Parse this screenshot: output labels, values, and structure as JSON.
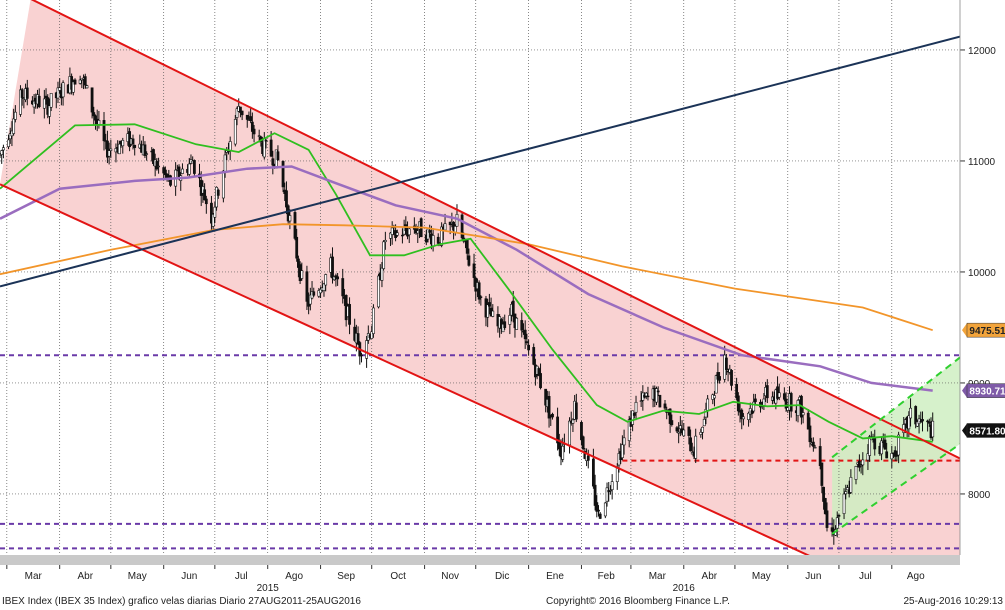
{
  "chart_data": {
    "type": "candlestick",
    "instrument": "IBEX Index (IBEX 35 Index)",
    "x_tick_labels": [
      "Mar",
      "Abr",
      "May",
      "Jun",
      "Jul",
      "Ago",
      "Sep",
      "Oct",
      "Nov",
      "Dic",
      "Ene",
      "Feb",
      "Mar",
      "Abr",
      "May",
      "Jun",
      "Jul",
      "Ago"
    ],
    "x_tick_dates": [
      "2015-03-01",
      "2015-04-01",
      "2015-05-01",
      "2015-06-01",
      "2015-07-01",
      "2015-08-01",
      "2015-09-01",
      "2015-10-01",
      "2015-11-01",
      "2015-12-01",
      "2016-01-01",
      "2016-02-01",
      "2016-03-01",
      "2016-04-01",
      "2016-05-01",
      "2016-06-01",
      "2016-07-01",
      "2016-08-01"
    ],
    "year_labels": [
      {
        "label": "2015",
        "date": "2015-08-01"
      },
      {
        "label": "2016",
        "date": "2016-04-01"
      }
    ],
    "y_ticks": [
      8000,
      9000,
      10000,
      11000,
      12000
    ],
    "y_tick_labels": [
      "8000",
      "9000",
      "10000",
      "11000",
      "12000"
    ],
    "ylim": [
      7450,
      12450
    ],
    "xlim": [
      "2015-02-25",
      "2016-09-10"
    ],
    "price_anchors": [
      [
        "2015-02-25",
        11050
      ],
      [
        "2015-03-10",
        11600
      ],
      [
        "2015-03-25",
        11500
      ],
      [
        "2015-04-13",
        11800
      ],
      [
        "2015-04-28",
        11100
      ],
      [
        "2015-05-15",
        11200
      ],
      [
        "2015-06-05",
        10800
      ],
      [
        "2015-06-18",
        11000
      ],
      [
        "2015-06-29",
        10500
      ],
      [
        "2015-07-15",
        11500
      ],
      [
        "2015-07-28",
        11150
      ],
      [
        "2015-08-07",
        11000
      ],
      [
        "2015-08-24",
        9700
      ],
      [
        "2015-09-07",
        10050
      ],
      [
        "2015-09-24",
        9300
      ],
      [
        "2015-10-01",
        9500
      ],
      [
        "2015-10-09",
        10300
      ],
      [
        "2015-10-26",
        10400
      ],
      [
        "2015-11-09",
        10300
      ],
      [
        "2015-11-20",
        10450
      ],
      [
        "2015-12-04",
        9750
      ],
      [
        "2015-12-14",
        9500
      ],
      [
        "2015-12-22",
        9650
      ],
      [
        "2016-01-06",
        9100
      ],
      [
        "2016-01-20",
        8400
      ],
      [
        "2016-01-28",
        8800
      ],
      [
        "2016-02-11",
        7800
      ],
      [
        "2016-02-22",
        8300
      ],
      [
        "2016-03-04",
        8800
      ],
      [
        "2016-03-15",
        8900
      ],
      [
        "2016-04-07",
        8400
      ],
      [
        "2016-04-25",
        9250
      ],
      [
        "2016-05-05",
        8700
      ],
      [
        "2016-05-20",
        8900
      ],
      [
        "2016-06-08",
        8800
      ],
      [
        "2016-06-20",
        8300
      ],
      [
        "2016-06-24",
        7700
      ],
      [
        "2016-06-27",
        7650
      ],
      [
        "2016-07-08",
        8100
      ],
      [
        "2016-07-20",
        8500
      ],
      [
        "2016-08-02",
        8350
      ],
      [
        "2016-08-12",
        8700
      ],
      [
        "2016-08-25",
        8571.8
      ]
    ],
    "moving_averages": [
      {
        "name": "green",
        "color": "#2fbf1f",
        "points": [
          [
            "2015-02-25",
            10750
          ],
          [
            "2015-04-10",
            11320
          ],
          [
            "2015-05-15",
            11330
          ],
          [
            "2015-06-20",
            11150
          ],
          [
            "2015-07-15",
            11080
          ],
          [
            "2015-08-05",
            11250
          ],
          [
            "2015-08-25",
            11100
          ],
          [
            "2015-09-10",
            10700
          ],
          [
            "2015-09-30",
            10150
          ],
          [
            "2015-10-20",
            10150
          ],
          [
            "2015-11-10",
            10250
          ],
          [
            "2015-11-28",
            10300
          ],
          [
            "2015-12-20",
            9850
          ],
          [
            "2016-01-15",
            9300
          ],
          [
            "2016-02-10",
            8800
          ],
          [
            "2016-02-28",
            8650
          ],
          [
            "2016-03-20",
            8750
          ],
          [
            "2016-04-10",
            8720
          ],
          [
            "2016-04-30",
            8830
          ],
          [
            "2016-05-20",
            8790
          ],
          [
            "2016-06-08",
            8800
          ],
          [
            "2016-06-25",
            8650
          ],
          [
            "2016-07-15",
            8500
          ],
          [
            "2016-08-01",
            8520
          ],
          [
            "2016-08-25",
            8470
          ]
        ]
      },
      {
        "name": "purple",
        "color": "#9a6dbf",
        "points": [
          [
            "2015-02-25",
            10480
          ],
          [
            "2015-04-01",
            10750
          ],
          [
            "2015-05-15",
            10820
          ],
          [
            "2015-06-15",
            10850
          ],
          [
            "2015-07-20",
            10930
          ],
          [
            "2015-08-15",
            10950
          ],
          [
            "2015-09-10",
            10800
          ],
          [
            "2015-10-15",
            10600
          ],
          [
            "2015-11-20",
            10480
          ],
          [
            "2015-12-25",
            10200
          ],
          [
            "2016-02-05",
            9800
          ],
          [
            "2016-03-20",
            9500
          ],
          [
            "2016-05-05",
            9250
          ],
          [
            "2016-06-20",
            9150
          ],
          [
            "2016-07-20",
            9000
          ],
          [
            "2016-08-25",
            8930.71
          ]
        ]
      },
      {
        "name": "orange",
        "color": "#f2952a",
        "points": [
          [
            "2015-02-25",
            9980
          ],
          [
            "2015-05-01",
            10200
          ],
          [
            "2015-07-01",
            10380
          ],
          [
            "2015-08-10",
            10430
          ],
          [
            "2015-09-15",
            10420
          ],
          [
            "2015-11-01",
            10400
          ],
          [
            "2016-01-01",
            10250
          ],
          [
            "2016-02-25",
            10050
          ],
          [
            "2016-05-01",
            9850
          ],
          [
            "2016-07-15",
            9680
          ],
          [
            "2016-08-25",
            9475.51
          ]
        ]
      }
    ],
    "trend_lines": [
      {
        "name": "down-channel-top",
        "color": "#e21414",
        "from": [
          "2015-03-15",
          12460
        ],
        "to": [
          "2016-09-10",
          8320
        ]
      },
      {
        "name": "down-channel-bottom",
        "color": "#e21414",
        "from": [
          "2015-02-25",
          10790
        ],
        "to": [
          "2016-07-01",
          7320
        ]
      },
      {
        "name": "long-trend",
        "color": "#1b3357",
        "from": [
          "2015-02-25",
          9870
        ],
        "to": [
          "2016-09-10",
          12120
        ]
      },
      {
        "name": "up-channel-top",
        "color": "#2fd02f",
        "dash": true,
        "from": [
          "2016-06-27",
          8330
        ],
        "to": [
          "2016-09-10",
          9230
        ]
      },
      {
        "name": "up-channel-bottom",
        "color": "#2fd02f",
        "dash": true,
        "from": [
          "2016-06-27",
          7640
        ],
        "to": [
          "2016-09-10",
          8450
        ]
      }
    ],
    "horizontal_lines": [
      {
        "name": "resistance-purple",
        "value": 9250,
        "color": "#6a3aa8"
      },
      {
        "name": "support-purple-1",
        "value": 7730,
        "color": "#6a3aa8"
      },
      {
        "name": "support-purple-2",
        "value": 7510,
        "color": "#6a3aa8"
      },
      {
        "name": "support-red",
        "value": 8300,
        "color": "#e21414",
        "from": "2016-02-25",
        "to": "2016-09-10"
      }
    ],
    "badges": [
      {
        "label": "9475.51",
        "value": 9475.51,
        "bg": "#f2a43b",
        "fg": "#222222"
      },
      {
        "label": "8930.71",
        "value": 8930.71,
        "bg": "#7f5ba8",
        "fg": "#ffffff"
      },
      {
        "label": "8571.80",
        "value": 8571.8,
        "bg": "#111111",
        "fg": "#ffffff"
      }
    ],
    "last_price": 8571.8
  },
  "footer": {
    "left": "IBEX Index (IBEX 35 Index) grafico velas diarias  Diario 27AUG2011-25AUG2016",
    "center": "Copyright© 2016 Bloomberg Finance L.P.",
    "right": "25-Aug-2016 10:29:13"
  }
}
